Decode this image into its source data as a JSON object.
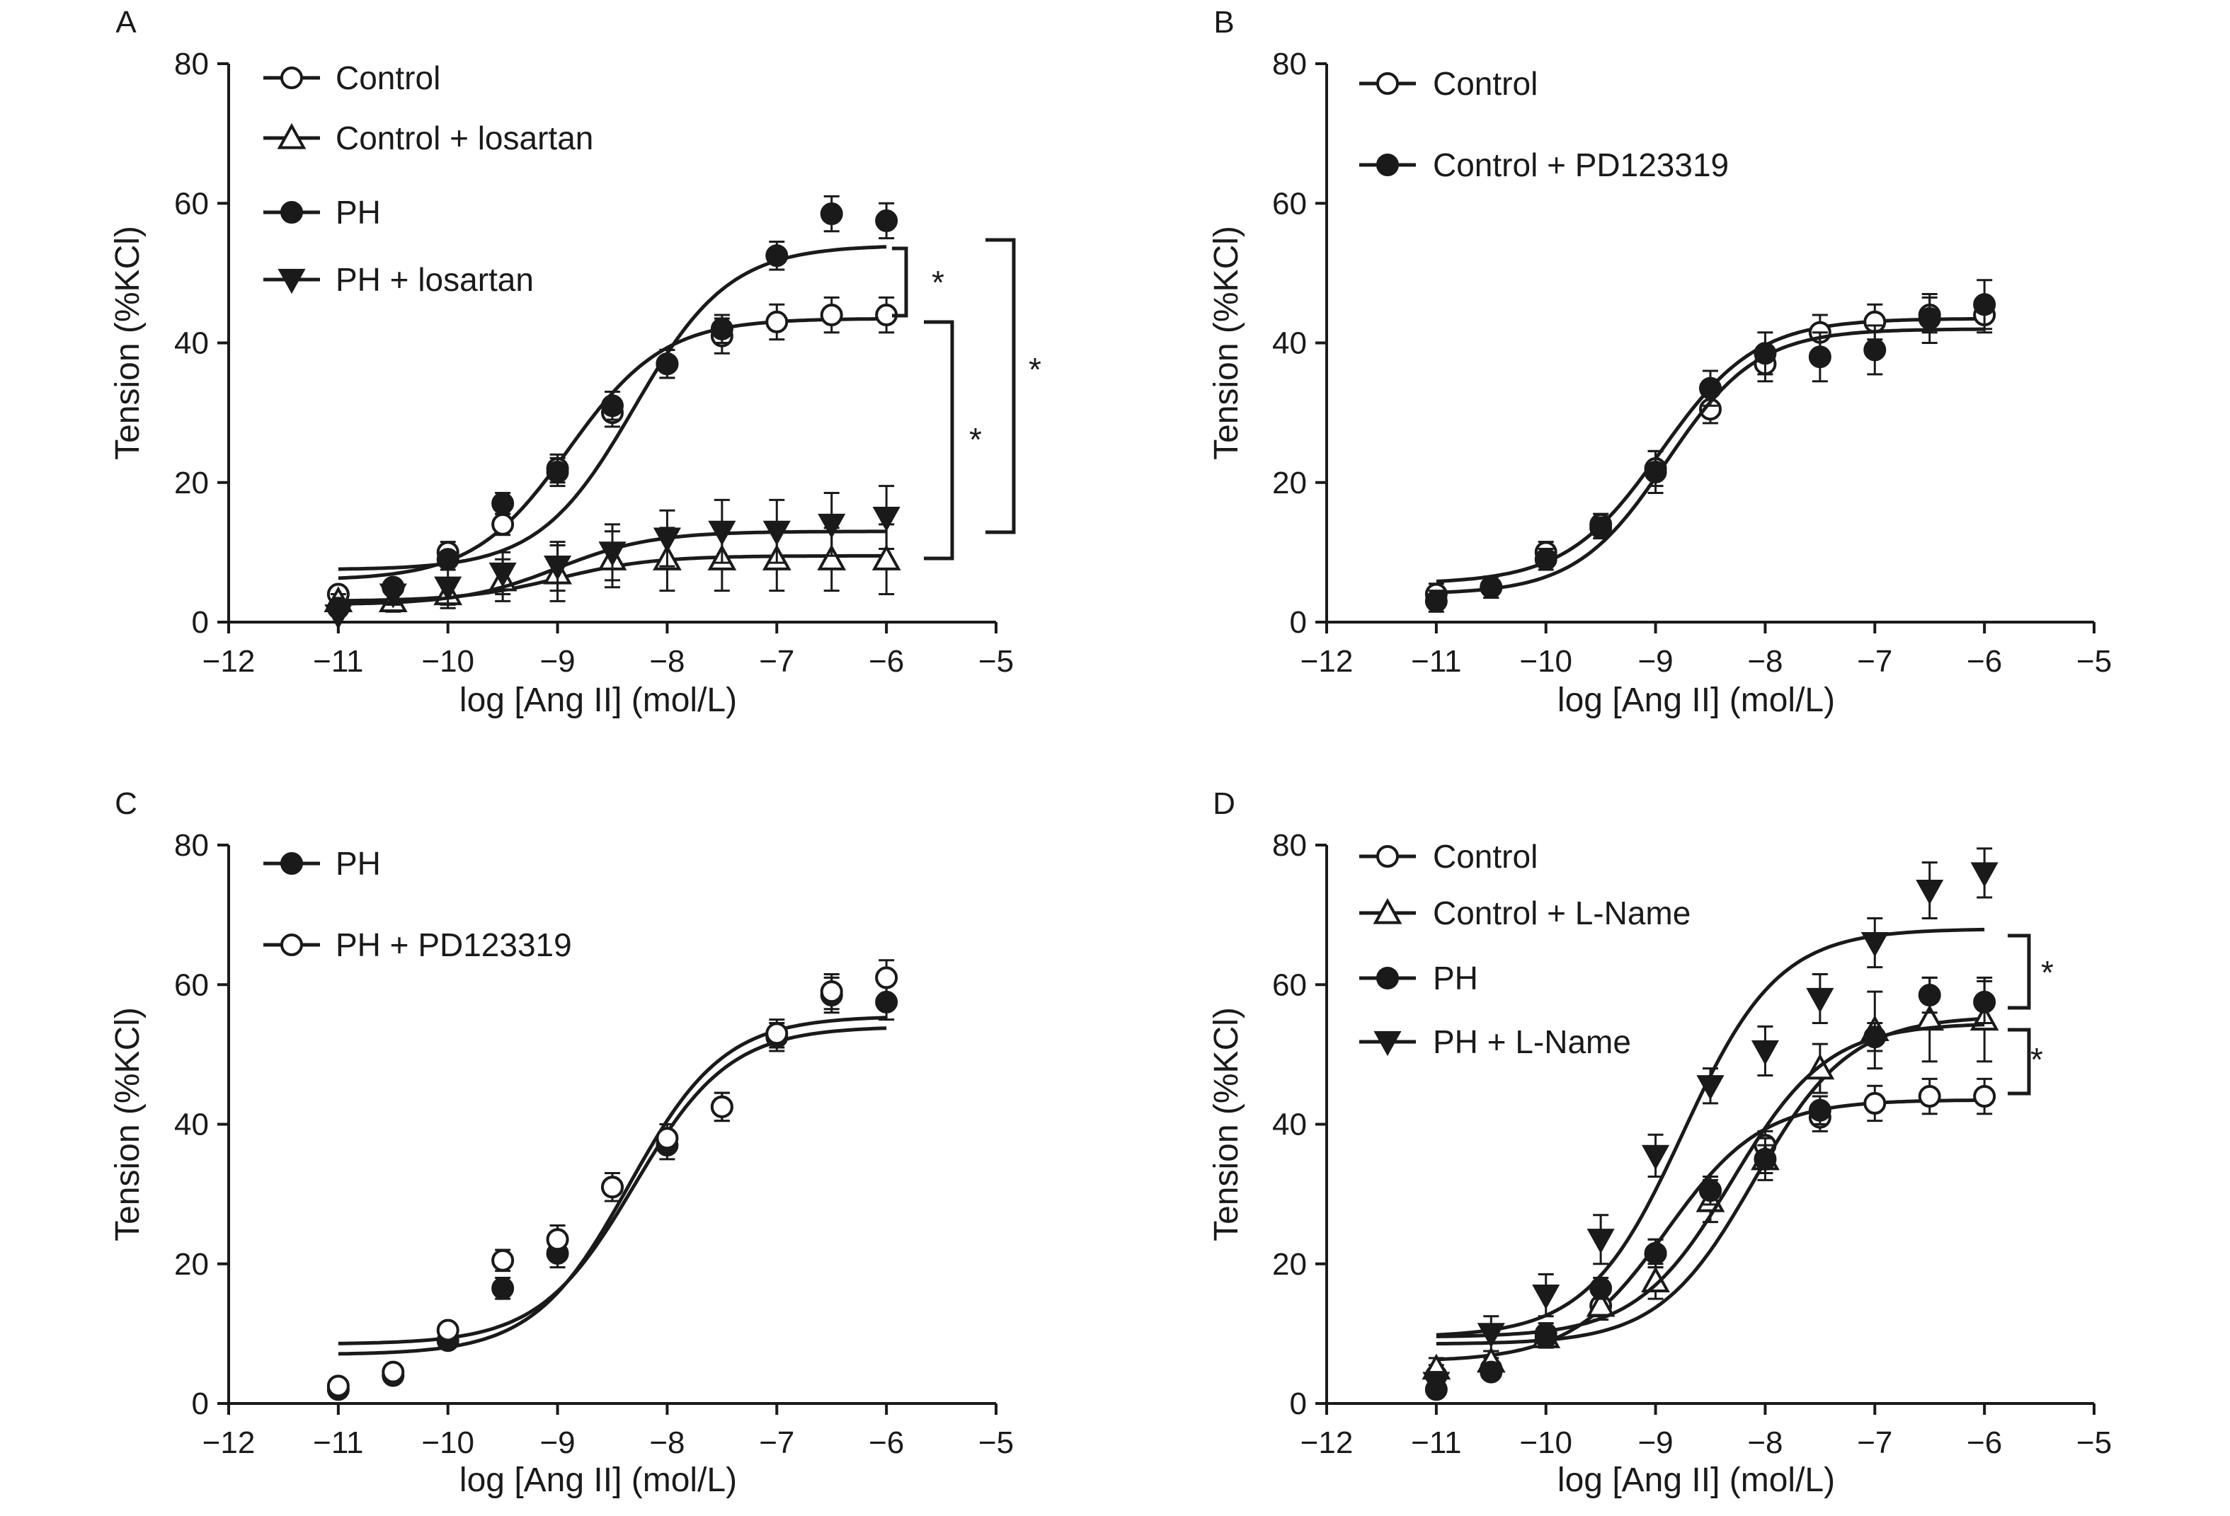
{
  "chart_data": [
    {
      "panel": "A",
      "type": "scatter",
      "xlabel": "log [Ang II] (mol/L)",
      "ylabel": "Tension (%KCl)",
      "xlim": [
        -12,
        -5
      ],
      "ylim": [
        0,
        80
      ],
      "xticks": [
        -12,
        -11,
        -10,
        -9,
        -8,
        -7,
        -6,
        -5
      ],
      "yticks": [
        0,
        20,
        40,
        60,
        80
      ],
      "xtick_labels": [
        "−12",
        "−11",
        "−10",
        "−9",
        "−8",
        "−7",
        "−6",
        "−5"
      ],
      "ytick_labels": [
        "0",
        "20",
        "40",
        "60",
        "80"
      ],
      "legend_position": "top-left",
      "x": [
        -11,
        -10.5,
        -10,
        -9.5,
        -9,
        -8.5,
        -8,
        -7.5,
        -7,
        -6.5,
        -6
      ],
      "series": [
        {
          "name": "Control",
          "marker": "circle-open",
          "values": [
            4,
            5,
            10,
            14,
            22,
            30,
            37,
            41,
            43,
            44,
            44
          ],
          "errors": [
            1,
            1,
            1.5,
            1.5,
            2,
            2,
            2,
            2.5,
            2.5,
            2.5,
            2.5
          ],
          "fit": {
            "bottom": 6,
            "top": 43.5,
            "logec50": -8.9,
            "hill": 1
          }
        },
        {
          "name": "Control + losartan",
          "marker": "triangle-open",
          "values": [
            3,
            3,
            4,
            6,
            7,
            9,
            9,
            9,
            9,
            9,
            9
          ],
          "errors": [
            1,
            1.5,
            2,
            3,
            4,
            4,
            4.5,
            4.5,
            4.5,
            4.5,
            5
          ],
          "fit": {
            "bottom": 3,
            "top": 9.5,
            "logec50": -9,
            "hill": 1
          }
        },
        {
          "name": "PH",
          "marker": "circle-filled",
          "values": [
            2,
            5,
            9,
            17,
            21.5,
            31,
            37,
            42,
            52.5,
            58.5,
            57.5
          ],
          "errors": [
            1,
            1,
            1,
            1.5,
            2,
            2,
            2,
            2,
            2,
            2.5,
            2.5
          ],
          "fit": {
            "bottom": 7.5,
            "top": 54,
            "logec50": -8.3,
            "hill": 1
          }
        },
        {
          "name": "PH + losartan",
          "marker": "triangle-filled",
          "values": [
            1,
            4,
            5,
            7,
            8,
            10,
            12,
            13,
            13,
            14,
            15
          ],
          "errors": [
            1,
            1.5,
            2.5,
            3,
            3.5,
            4,
            4,
            4.5,
            4.5,
            4.5,
            4.5
          ],
          "fit": {
            "bottom": 2.5,
            "top": 13,
            "logec50": -9,
            "hill": 1
          }
        }
      ],
      "annotations": [
        {
          "text": "*",
          "compares": [
            "PH",
            "Control"
          ]
        },
        {
          "text": "*",
          "compares": [
            "Control",
            "Control + losartan"
          ]
        },
        {
          "text": "*",
          "compares": [
            "PH",
            "PH + losartan"
          ]
        }
      ]
    },
    {
      "panel": "B",
      "type": "scatter",
      "xlabel": "log [Ang II] (mol/L)",
      "ylabel": "Tension (%KCl)",
      "xlim": [
        -12,
        -5
      ],
      "ylim": [
        0,
        80
      ],
      "xticks": [
        -12,
        -11,
        -10,
        -9,
        -8,
        -7,
        -6,
        -5
      ],
      "yticks": [
        0,
        20,
        40,
        60,
        80
      ],
      "xtick_labels": [
        "−12",
        "−11",
        "−10",
        "−9",
        "−8",
        "−7",
        "−6",
        "−5"
      ],
      "ytick_labels": [
        "0",
        "20",
        "40",
        "60",
        "80"
      ],
      "legend_position": "top-left",
      "x": [
        -11,
        -10.5,
        -10,
        -9.5,
        -9,
        -8.5,
        -8,
        -7.5,
        -7,
        -6.5,
        -6
      ],
      "series": [
        {
          "name": "Control",
          "marker": "circle-open",
          "values": [
            4,
            5,
            10,
            14,
            22,
            30.5,
            37,
            41.5,
            43,
            44,
            44
          ],
          "errors": [
            1.5,
            1.5,
            1.5,
            1.5,
            2.5,
            2,
            2.5,
            2.5,
            2.5,
            2.5,
            2.5
          ],
          "fit": {
            "bottom": 5.5,
            "top": 43.5,
            "logec50": -8.95,
            "hill": 1
          }
        },
        {
          "name": "Control + PD123319",
          "marker": "circle-filled",
          "values": [
            3,
            5,
            9,
            13.5,
            21.5,
            33.5,
            38.5,
            38,
            39,
            43.5,
            45.5
          ],
          "errors": [
            1.5,
            1.5,
            1.5,
            1.5,
            3,
            2.5,
            3,
            3.5,
            3.5,
            3.5,
            3.5
          ],
          "fit": {
            "bottom": 4,
            "top": 42,
            "logec50": -8.9,
            "hill": 1.05
          }
        }
      ]
    },
    {
      "panel": "C",
      "type": "scatter",
      "xlabel": "log [Ang II] (mol/L)",
      "ylabel": "Tension (%KCl)",
      "xlim": [
        -12,
        -5
      ],
      "ylim": [
        0,
        80
      ],
      "xticks": [
        -12,
        -11,
        -10,
        -9,
        -8,
        -7,
        -6,
        -5
      ],
      "yticks": [
        0,
        20,
        40,
        60,
        80
      ],
      "xtick_labels": [
        "−12",
        "−11",
        "−10",
        "−9",
        "−8",
        "−7",
        "−6",
        "−5"
      ],
      "ytick_labels": [
        "0",
        "20",
        "40",
        "60",
        "80"
      ],
      "legend_position": "top-left",
      "x": [
        -11,
        -10.5,
        -10,
        -9.5,
        -9,
        -8.5,
        -8,
        -7.5,
        -7,
        -6.5,
        -6
      ],
      "series": [
        {
          "name": "PH",
          "marker": "circle-filled",
          "values": [
            2,
            4,
            9,
            16.5,
            21.5,
            31,
            37,
            42.5,
            52.5,
            58.5,
            57.5
          ],
          "errors": [
            1,
            1,
            1,
            1.5,
            2,
            2,
            2,
            2,
            2,
            2.5,
            2.5
          ],
          "fit": {
            "bottom": 8.5,
            "top": 54,
            "logec50": -8.3,
            "hill": 1
          }
        },
        {
          "name": "PH + PD123319",
          "marker": "circle-open",
          "values": [
            2.5,
            4.5,
            10.5,
            20.5,
            23.5,
            31,
            38,
            42.5,
            53,
            59,
            61
          ],
          "errors": [
            1,
            1,
            1,
            1.5,
            2,
            2,
            2,
            2,
            2,
            2.5,
            2.5
          ],
          "fit": {
            "bottom": 7,
            "top": 55.5,
            "logec50": -8.35,
            "hill": 1
          }
        }
      ]
    },
    {
      "panel": "D",
      "type": "scatter",
      "xlabel": "log [Ang II] (mol/L)",
      "ylabel": "Tension (%KCl)",
      "xlim": [
        -12,
        -5
      ],
      "ylim": [
        0,
        80
      ],
      "xticks": [
        -12,
        -11,
        -10,
        -9,
        -8,
        -7,
        -6,
        -5
      ],
      "yticks": [
        0,
        20,
        40,
        60,
        80
      ],
      "xtick_labels": [
        "−12",
        "−11",
        "−10",
        "−9",
        "−8",
        "−7",
        "−6",
        "−5"
      ],
      "ytick_labels": [
        "0",
        "20",
        "40",
        "60",
        "80"
      ],
      "legend_position": "top-left",
      "x": [
        -11,
        -10.5,
        -10,
        -9.5,
        -9,
        -8.5,
        -8,
        -7.5,
        -7,
        -6.5,
        -6
      ],
      "series": [
        {
          "name": "Control",
          "marker": "circle-open",
          "values": [
            4,
            5,
            10,
            14,
            21.5,
            30.5,
            37,
            41,
            43,
            44,
            44
          ],
          "errors": [
            1.5,
            1.5,
            1.5,
            1.5,
            2,
            2,
            2,
            2,
            2.5,
            2.5,
            2.5
          ],
          "fit": {
            "bottom": 6,
            "top": 43.5,
            "logec50": -8.9,
            "hill": 1
          }
        },
        {
          "name": "Control + L-Name",
          "marker": "triangle-open",
          "values": [
            5,
            6,
            9.5,
            14,
            17.5,
            29,
            35,
            48,
            53.5,
            55,
            55
          ],
          "errors": [
            1.5,
            1.5,
            1.5,
            2,
            2.5,
            3,
            3,
            3.5,
            5.5,
            6,
            6
          ],
          "fit": {
            "bottom": 8.5,
            "top": 55.5,
            "logec50": -8.1,
            "hill": 1
          }
        },
        {
          "name": "PH",
          "marker": "circle-filled",
          "values": [
            2,
            4.5,
            9.5,
            16.5,
            21.5,
            30.5,
            35,
            42,
            52.5,
            58.5,
            57.5
          ],
          "errors": [
            1,
            1,
            1,
            1.5,
            2,
            2,
            2,
            2,
            2,
            2.5,
            3
          ],
          "fit": {
            "bottom": 9.5,
            "top": 54.5,
            "logec50": -8.3,
            "hill": 1
          }
        },
        {
          "name": "PH + L-Name",
          "marker": "triangle-filled",
          "values": [
            3,
            10,
            15.5,
            23.5,
            35.5,
            45.5,
            50.5,
            58,
            66,
            73.5,
            76
          ],
          "errors": [
            1.5,
            2.5,
            3,
            3.5,
            3,
            2.5,
            3.5,
            3.5,
            3.5,
            4,
            3.5
          ],
          "fit": {
            "bottom": 9.5,
            "top": 68,
            "logec50": -8.75,
            "hill": 1
          }
        }
      ],
      "annotations": [
        {
          "text": "*",
          "compares": [
            "PH + L-Name",
            "PH"
          ]
        },
        {
          "text": "*",
          "compares": [
            "Control + L-Name",
            "Control"
          ]
        }
      ]
    }
  ]
}
